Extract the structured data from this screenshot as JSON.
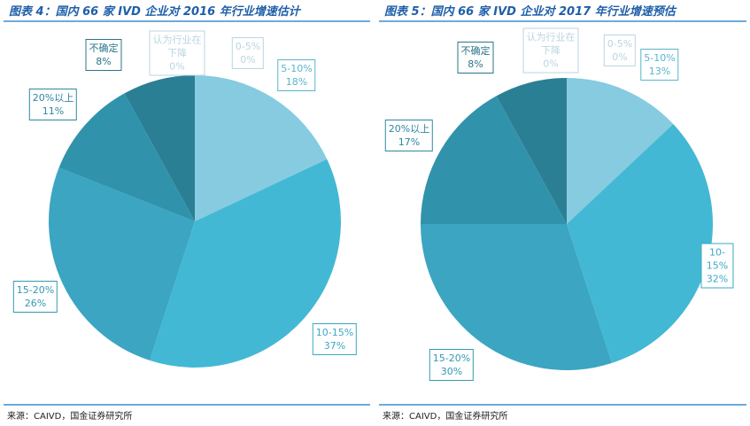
{
  "chart_data": [
    {
      "type": "pie",
      "title": "图表 4：国内 66 家 IVD 企业对 2016 年行业增速估计",
      "categories": [
        "认为行业在\n下降",
        "0-5%",
        "5-10%",
        "10-15%",
        "15-20%",
        "20%以上",
        "不确定"
      ],
      "values": [
        0,
        0,
        18,
        37,
        26,
        11,
        8
      ],
      "value_labels": [
        "0%",
        "0%",
        "18%",
        "37%",
        "26%",
        "11%",
        "8%"
      ],
      "colors": [
        "#b9dde8",
        "#a6d6e4",
        "#86cbe0",
        "#43b8d4",
        "#3ba5c2",
        "#3192ac",
        "#2b7f95"
      ],
      "source": "来源：CAIVD，国金证券研究所"
    },
    {
      "type": "pie",
      "title": "图表 5：国内 66 家 IVD 企业对 2017 年行业增速预估",
      "categories": [
        "认为行业在\n下降",
        "0-5%",
        "5-10%",
        "10-15%",
        "15-20%",
        "20%以上",
        "不确定"
      ],
      "values": [
        0,
        0,
        13,
        32,
        30,
        17,
        8
      ],
      "value_labels": [
        "0%",
        "0%",
        "13%",
        "32%",
        "30%",
        "17%",
        "8%"
      ],
      "colors": [
        "#b9dde8",
        "#a6d6e4",
        "#86cbe0",
        "#43b8d4",
        "#3ba5c2",
        "#3192ac",
        "#2b7f95"
      ],
      "source": "来源：CAIVD，国金证券研究所"
    }
  ]
}
